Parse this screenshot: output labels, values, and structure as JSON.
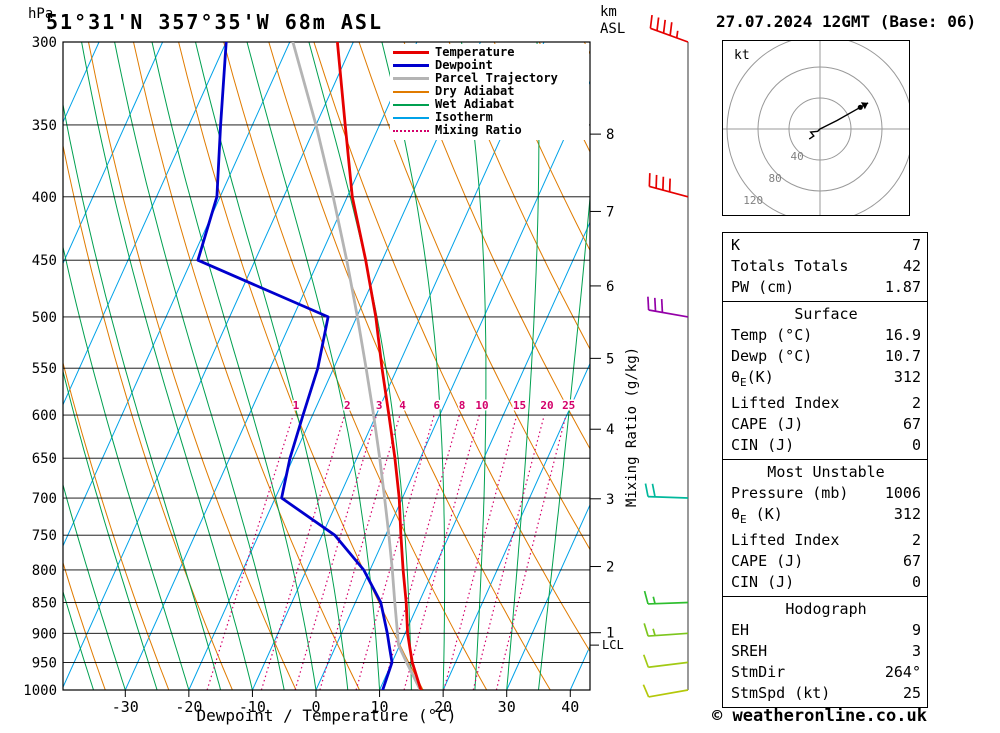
{
  "colors": {
    "temperature": "#e60000",
    "dewpoint": "#0000cd",
    "parcel": "#b4b4b4",
    "dry_adiabat": "#e07b00",
    "wet_adiabat": "#00a050",
    "isotherm": "#00a2e8",
    "mixing_ratio": "#d4006a"
  },
  "header": {
    "station_title": "51°31'N 357°35'W 68m ASL",
    "datetime_title": "27.07.2024 12GMT (Base: 06)",
    "pressure_unit": "hPa",
    "altitude_unit_line1": "km",
    "altitude_unit_line2": "ASL"
  },
  "axes": {
    "x_label": "Dewpoint / Temperature (°C)",
    "y_right_label": "Mixing Ratio (g/kg)",
    "pressure_ticks": [
      300,
      350,
      400,
      450,
      500,
      550,
      600,
      650,
      700,
      750,
      800,
      850,
      900,
      950,
      1000
    ],
    "temp_ticks": [
      -30,
      -20,
      -10,
      0,
      10,
      20,
      30,
      40
    ],
    "km_ticks": [
      {
        "km": 1,
        "p": 899
      },
      {
        "km": 2,
        "p": 795
      },
      {
        "km": 3,
        "p": 701
      },
      {
        "km": 4,
        "p": 616
      },
      {
        "km": 5,
        "p": 540
      },
      {
        "km": 6,
        "p": 472
      },
      {
        "km": 7,
        "p": 411
      },
      {
        "km": 8,
        "p": 356
      }
    ],
    "lcl": {
      "label": "LCL",
      "p": 920
    }
  },
  "legend": {
    "items": [
      {
        "label": "Temperature",
        "color_key": "temperature",
        "line_style": "solid",
        "line_width": 3
      },
      {
        "label": "Dewpoint",
        "color_key": "dewpoint",
        "line_style": "solid",
        "line_width": 3
      },
      {
        "label": "Parcel Trajectory",
        "color_key": "parcel",
        "line_style": "solid",
        "line_width": 3
      },
      {
        "label": "Dry Adiabat",
        "color_key": "dry_adiabat",
        "line_style": "solid",
        "line_width": 2
      },
      {
        "label": "Wet Adiabat",
        "color_key": "wet_adiabat",
        "line_style": "solid",
        "line_width": 2
      },
      {
        "label": "Isotherm",
        "color_key": "isotherm",
        "line_style": "solid",
        "line_width": 2
      },
      {
        "label": "Mixing Ratio",
        "color_key": "mixing_ratio",
        "line_style": "dotted",
        "line_width": 2
      }
    ]
  },
  "mixing_ratio_lines": [
    1,
    2,
    3,
    4,
    6,
    8,
    10,
    15,
    20,
    25
  ],
  "chart_data": {
    "type": "skewt_sounding",
    "pressure_axis_hpa": {
      "min": 300,
      "max": 1000,
      "scale": "log"
    },
    "temperature_axis_c": {
      "min": -40,
      "max": 40,
      "ticks": [
        -30,
        -20,
        -10,
        0,
        10,
        20,
        30,
        40
      ]
    },
    "temperature_profile": {
      "pressure_hpa": [
        1006,
        1000,
        950,
        925,
        900,
        850,
        800,
        750,
        700,
        650,
        600,
        550,
        500,
        450,
        400,
        350,
        300
      ],
      "temp_c": [
        16.9,
        16.5,
        13.2,
        11.8,
        10.4,
        8.0,
        5.2,
        2.4,
        -0.5,
        -4.0,
        -8.0,
        -12.4,
        -17.0,
        -22.6,
        -29.2,
        -35.4,
        -42.5
      ]
    },
    "dewpoint_profile": {
      "pressure_hpa": [
        1006,
        1000,
        950,
        925,
        900,
        850,
        800,
        750,
        700,
        650,
        600,
        550,
        500,
        450,
        400,
        350,
        300
      ],
      "temp_c": [
        10.7,
        10.5,
        10.0,
        8.6,
        7.2,
        4.0,
        -1.0,
        -8.0,
        -19.0,
        -20.5,
        -21.5,
        -22.5,
        -24.5,
        -49.0,
        -50.5,
        -55.0,
        -60.0
      ]
    },
    "parcel_profile": {
      "pressure_hpa": [
        1006,
        1000,
        950,
        920,
        900,
        850,
        800,
        750,
        700,
        650,
        600,
        550,
        500,
        450,
        400,
        350,
        300
      ],
      "temp_c": [
        16.9,
        16.4,
        12.3,
        9.8,
        8.8,
        6.2,
        3.5,
        0.5,
        -2.8,
        -6.4,
        -10.4,
        -14.9,
        -19.9,
        -25.6,
        -32.2,
        -40.0,
        -49.5
      ]
    },
    "wind_barbs": [
      {
        "p": 300,
        "speed_kt": 45,
        "dir_deg": 290,
        "color": "#e60000"
      },
      {
        "p": 400,
        "speed_kt": 40,
        "dir_deg": 285,
        "color": "#e60000"
      },
      {
        "p": 500,
        "speed_kt": 30,
        "dir_deg": 280,
        "color": "#9400a8"
      },
      {
        "p": 700,
        "speed_kt": 20,
        "dir_deg": 272,
        "color": "#00b89c"
      },
      {
        "p": 850,
        "speed_kt": 15,
        "dir_deg": 268,
        "color": "#2ebe2e"
      },
      {
        "p": 900,
        "speed_kt": 15,
        "dir_deg": 266,
        "color": "#7dc61e"
      },
      {
        "p": 950,
        "speed_kt": 10,
        "dir_deg": 263,
        "color": "#a2ca14"
      },
      {
        "p": 1000,
        "speed_kt": 10,
        "dir_deg": 260,
        "color": "#b4c80a"
      }
    ]
  },
  "hodograph": {
    "unit_label": "kt",
    "rings_kt": [
      40,
      80,
      120
    ],
    "ring_labels": [
      "40",
      "80",
      "120"
    ],
    "trace_kt": [
      [
        -14,
        -13
      ],
      [
        -8,
        -9
      ],
      [
        -12,
        -4
      ],
      [
        -3,
        -3
      ],
      [
        0,
        0
      ],
      [
        22,
        11
      ],
      [
        52,
        28
      ]
    ],
    "marker_kt": [
      52,
      28
    ]
  },
  "table": {
    "sections": [
      {
        "title": "",
        "rows": [
          {
            "label": "K",
            "value": "7"
          },
          {
            "label": "Totals Totals",
            "value": "42"
          },
          {
            "label": "PW (cm)",
            "value": "1.87"
          }
        ]
      },
      {
        "title": "Surface",
        "rows": [
          {
            "label": "Temp (°C)",
            "value": "16.9"
          },
          {
            "label": "Dewp (°C)",
            "value": "10.7"
          },
          {
            "label": "θ_E(K)",
            "value": "312"
          },
          {
            "label": "Lifted Index",
            "value": "2"
          },
          {
            "label": "CAPE (J)",
            "value": "67"
          },
          {
            "label": "CIN (J)",
            "value": "0"
          }
        ]
      },
      {
        "title": "Most Unstable",
        "rows": [
          {
            "label": "Pressure (mb)",
            "value": "1006"
          },
          {
            "label": "θ_E (K)",
            "value": "312"
          },
          {
            "label": "Lifted Index",
            "value": "2"
          },
          {
            "label": "CAPE (J)",
            "value": "67"
          },
          {
            "label": "CIN (J)",
            "value": "0"
          }
        ]
      },
      {
        "title": "Hodograph",
        "rows": [
          {
            "label": "EH",
            "value": "9"
          },
          {
            "label": "SREH",
            "value": "3"
          },
          {
            "label": "StmDir",
            "value": "264°"
          },
          {
            "label": "StmSpd (kt)",
            "value": "25"
          }
        ]
      }
    ]
  },
  "footer": {
    "credit": "© weatheronline.co.uk"
  }
}
